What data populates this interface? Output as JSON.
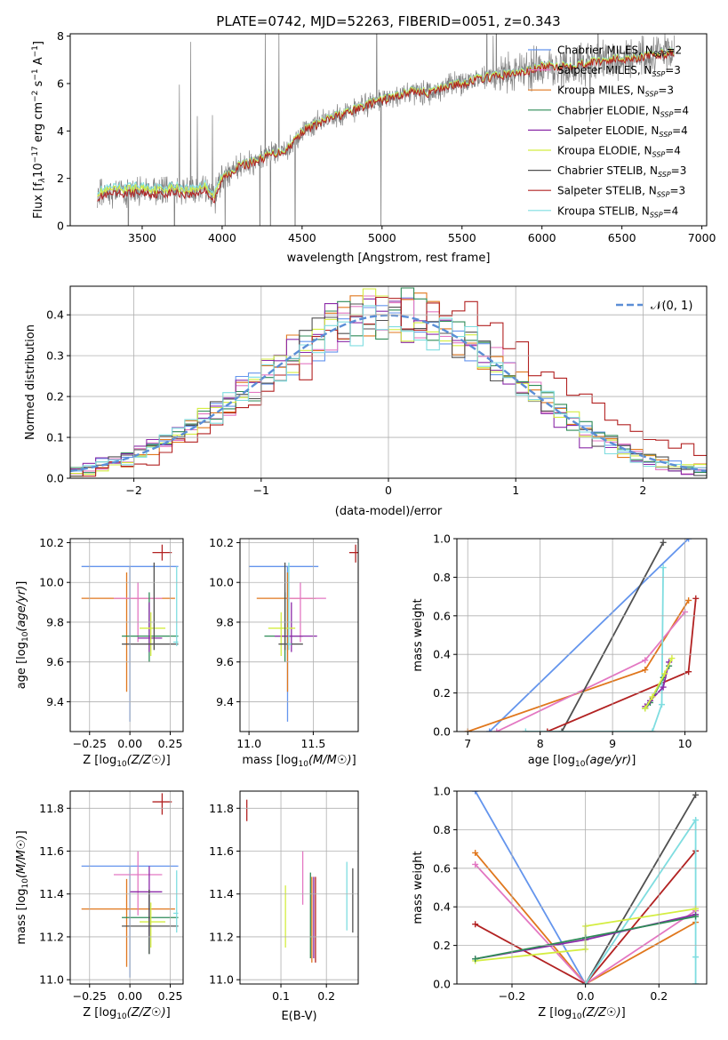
{
  "colors": {
    "Chabrier MILES": "#6495ed",
    "Salpeter MILES": "#e377c2",
    "Kroupa MILES": "#e0771d",
    "Chabrier ELODIE": "#2e8b57",
    "Salpeter ELODIE": "#8b2aa8",
    "Kroupa ELODIE": "#d4ed41",
    "Chabrier STELIB": "#505050",
    "Salpeter STELIB": "#b22222",
    "Kroupa STELIB": "#7fdde0",
    "data": "#808080",
    "normal": "#5b8ed6"
  },
  "chart_data": [
    {
      "id": "spectrum",
      "type": "line",
      "title": "PLATE=0742, MJD=52263, FIBERID=0051, z=0.343",
      "xlabel": "wavelength [Angstrom, rest frame]",
      "ylabel": "Flux [f_λ10^-17 erg cm^-2 s^-1 A^-1]",
      "xlim": [
        3050,
        7030
      ],
      "ylim": [
        0,
        8.1
      ],
      "xticks": [
        3500,
        4000,
        4500,
        5000,
        5500,
        6000,
        6500,
        7000
      ],
      "yticks": [
        0,
        2,
        4,
        6,
        8
      ],
      "grid": false,
      "legend_position": "upper-right",
      "legend": [
        {
          "model": "Chabrier MILES",
          "n": "2"
        },
        {
          "model": "Salpeter MILES",
          "n": "3"
        },
        {
          "model": "Kroupa MILES",
          "n": "3"
        },
        {
          "model": "Chabrier ELODIE",
          "n": "4"
        },
        {
          "model": "Salpeter ELODIE",
          "n": "4"
        },
        {
          "model": "Kroupa ELODIE",
          "n": "4"
        },
        {
          "model": "Chabrier STELIB",
          "n": "3"
        },
        {
          "model": "Salpeter STELIB",
          "n": "3"
        },
        {
          "model": "Kroupa STELIB",
          "n": "4"
        }
      ],
      "continuum": {
        "x": [
          3220,
          3300,
          3400,
          3500,
          3600,
          3700,
          3800,
          3900,
          3950,
          4000,
          4100,
          4200,
          4300,
          4400,
          4500,
          4600,
          4700,
          4800,
          4900,
          5000,
          5100,
          5200,
          5300,
          5400,
          5500,
          5600,
          5700,
          5800,
          5900,
          6000,
          6100,
          6200,
          6300,
          6400,
          6500,
          6600,
          6700,
          6800
        ],
        "y": [
          1.3,
          1.4,
          1.45,
          1.5,
          1.42,
          1.5,
          1.4,
          1.6,
          1.1,
          2.0,
          2.5,
          2.7,
          3.0,
          3.2,
          4.0,
          4.3,
          4.6,
          4.8,
          5.1,
          5.3,
          5.5,
          5.7,
          5.6,
          5.9,
          6.0,
          6.2,
          6.3,
          6.4,
          6.5,
          6.7,
          6.75,
          6.8,
          6.9,
          7.0,
          7.05,
          7.1,
          7.2,
          7.3
        ]
      },
      "model_offsets": {
        "Kroupa STELIB": 0.2,
        "Salpeter STELIB": -0.1,
        "Kroupa ELODIE": 0.1
      }
    },
    {
      "id": "residuals",
      "type": "histogram",
      "xlabel": "(data-model)/error",
      "ylabel": "Normed distribution",
      "xlim": [
        -2.5,
        2.5
      ],
      "ylim": [
        0,
        0.47
      ],
      "xticks": [
        -2,
        -1,
        0,
        1,
        2
      ],
      "yticks": [
        0.0,
        0.1,
        0.2,
        0.3,
        0.4
      ],
      "grid": true,
      "legend_position": "upper-right",
      "legend_label": "𝒩(0, 1)",
      "bin_width": 0.1
    },
    {
      "id": "age-vs-Z",
      "type": "errorbar",
      "xlabel": "Z [log10(Z/Z☉)]",
      "ylabel": "age  [log10(age/yr)]",
      "xlim": [
        -0.37,
        0.33
      ],
      "ylim": [
        9.25,
        10.22
      ],
      "xticks": [
        -0.25,
        0.0,
        0.25
      ],
      "xticklabels": [
        "−0.25",
        "0.00",
        "0.25"
      ],
      "yticks": [
        9.4,
        9.6,
        9.8,
        10.0,
        10.2
      ],
      "points": [
        {
          "model": "Chabrier MILES",
          "x": 0.0,
          "xlo": -0.3,
          "xhi": 0.3,
          "y": 10.08,
          "ylo": 9.3,
          "yhi": 10.08
        },
        {
          "model": "Kroupa MILES",
          "x": -0.02,
          "xlo": -0.3,
          "xhi": 0.28,
          "y": 9.92,
          "ylo": 9.45,
          "yhi": 10.05
        },
        {
          "model": "Salpeter MILES",
          "x": 0.05,
          "xlo": -0.1,
          "xhi": 0.2,
          "y": 9.92,
          "ylo": 9.7,
          "yhi": 10.0
        },
        {
          "model": "Chabrier ELODIE",
          "x": 0.12,
          "xlo": -0.05,
          "xhi": 0.3,
          "y": 9.73,
          "ylo": 9.6,
          "yhi": 9.95
        },
        {
          "model": "Salpeter ELODIE",
          "x": 0.12,
          "xlo": 0.05,
          "xhi": 0.2,
          "y": 9.72,
          "ylo": 9.65,
          "yhi": 9.9
        },
        {
          "model": "Kroupa ELODIE",
          "x": 0.13,
          "xlo": 0.06,
          "xhi": 0.22,
          "y": 9.77,
          "ylo": 9.63,
          "yhi": 9.85
        },
        {
          "model": "Chabrier STELIB",
          "x": 0.15,
          "xlo": -0.05,
          "xhi": 0.3,
          "y": 9.69,
          "ylo": 9.66,
          "yhi": 10.1
        },
        {
          "model": "Kroupa STELIB",
          "x": 0.29,
          "xlo": 0.27,
          "xhi": 0.3,
          "y": 9.7,
          "ylo": 9.68,
          "yhi": 10.08
        },
        {
          "model": "Salpeter STELIB",
          "x": 0.2,
          "xlo": 0.14,
          "xhi": 0.26,
          "y": 10.15,
          "ylo": 10.11,
          "yhi": 10.19
        }
      ]
    },
    {
      "id": "age-vs-mass",
      "type": "errorbar",
      "xlabel": "mass [log10(M/M☉)]",
      "xlim": [
        10.93,
        11.85
      ],
      "ylim": [
        9.25,
        10.22
      ],
      "xticks": [
        11.0,
        11.5
      ],
      "xticklabels": [
        "11.0",
        "11.5"
      ],
      "yticks": [
        9.4,
        9.6,
        9.8,
        10.0,
        10.2
      ],
      "points": [
        {
          "model": "Chabrier MILES",
          "x": 11.3,
          "xlo": 11.0,
          "xhi": 11.54,
          "y": 10.08,
          "ylo": 9.3,
          "yhi": 10.08
        },
        {
          "model": "Kroupa MILES",
          "x": 11.3,
          "xlo": 11.06,
          "xhi": 11.52,
          "y": 9.92,
          "ylo": 9.45,
          "yhi": 10.05
        },
        {
          "model": "Salpeter MILES",
          "x": 11.4,
          "xlo": 11.3,
          "xhi": 11.6,
          "y": 9.92,
          "ylo": 9.7,
          "yhi": 10.0
        },
        {
          "model": "Chabrier ELODIE",
          "x": 11.28,
          "xlo": 11.12,
          "xhi": 11.42,
          "y": 9.73,
          "ylo": 9.6,
          "yhi": 9.95
        },
        {
          "model": "Salpeter ELODIE",
          "x": 11.33,
          "xlo": 11.2,
          "xhi": 11.53,
          "y": 9.73,
          "ylo": 9.65,
          "yhi": 9.9
        },
        {
          "model": "Kroupa ELODIE",
          "x": 11.25,
          "xlo": 11.15,
          "xhi": 11.36,
          "y": 9.77,
          "ylo": 9.63,
          "yhi": 9.85
        },
        {
          "model": "Chabrier STELIB",
          "x": 11.28,
          "xlo": 11.23,
          "xhi": 11.42,
          "y": 9.69,
          "ylo": 9.66,
          "yhi": 10.1
        },
        {
          "model": "Kroupa STELIB",
          "x": 11.31,
          "xlo": 11.3,
          "xhi": 11.33,
          "y": 9.69,
          "ylo": 9.66,
          "yhi": 10.1
        },
        {
          "model": "Salpeter STELIB",
          "x": 11.83,
          "xlo": 11.78,
          "xhi": 11.88,
          "y": 10.15,
          "ylo": 10.1,
          "yhi": 10.19
        }
      ]
    },
    {
      "id": "massweight-vs-age",
      "type": "line",
      "xlabel": "age  [log10(age/yr)]",
      "ylabel": "mass weight",
      "xlim": [
        6.85,
        10.3
      ],
      "ylim": [
        0,
        1.0
      ],
      "xticks": [
        7,
        8,
        9,
        10
      ],
      "yticks": [
        0.0,
        0.2,
        0.4,
        0.6,
        0.8,
        1.0
      ],
      "grid": true,
      "series": [
        {
          "model": "Chabrier MILES",
          "x": [
            7.3,
            10.05
          ],
          "y": [
            0.0,
            1.0
          ]
        },
        {
          "model": "Kroupa MILES",
          "x": [
            7.0,
            9.45,
            10.05
          ],
          "y": [
            0.0,
            0.32,
            0.68
          ]
        },
        {
          "model": "Salpeter MILES",
          "x": [
            7.4,
            9.45,
            10.0
          ],
          "y": [
            0.0,
            0.37,
            0.62
          ]
        },
        {
          "model": "Chabrier STELIB",
          "x": [
            8.3,
            9.7
          ],
          "y": [
            0.0,
            0.98
          ]
        },
        {
          "model": "Salpeter STELIB",
          "x": [
            8.1,
            10.05,
            10.15
          ],
          "y": [
            0.0,
            0.31,
            0.69
          ]
        },
        {
          "model": "Kroupa STELIB",
          "x": [
            7.8,
            9.55,
            9.68,
            9.7
          ],
          "y": [
            0.0,
            0.0,
            0.14,
            0.85
          ]
        },
        {
          "model": "Chabrier ELODIE",
          "x": [
            9.45,
            9.52,
            9.7,
            9.78
          ],
          "y": [
            0.12,
            0.15,
            0.28,
            0.34
          ]
        },
        {
          "model": "Salpeter ELODIE",
          "x": [
            9.45,
            9.52,
            9.7,
            9.78
          ],
          "y": [
            0.13,
            0.16,
            0.23,
            0.36
          ]
        },
        {
          "model": "Kroupa ELODIE",
          "x": [
            9.45,
            9.55,
            9.72,
            9.82
          ],
          "y": [
            0.12,
            0.18,
            0.3,
            0.38
          ]
        }
      ]
    },
    {
      "id": "mass-vs-Z",
      "type": "errorbar",
      "xlabel": "Z [log10(Z/Z☉)]",
      "ylabel": "mass [log10(M/M☉)]",
      "xlim": [
        -0.37,
        0.33
      ],
      "ylim": [
        10.98,
        11.88
      ],
      "xticks": [
        -0.25,
        0.0,
        0.25
      ],
      "xticklabels": [
        "−0.25",
        "0.00",
        "0.25"
      ],
      "yticks": [
        11.0,
        11.2,
        11.4,
        11.6,
        11.8
      ],
      "points": [
        {
          "model": "Chabrier MILES",
          "x": 0.0,
          "xlo": -0.3,
          "xhi": 0.3,
          "y": 11.53,
          "ylo": 11.01,
          "yhi": 11.53
        },
        {
          "model": "Kroupa MILES",
          "x": -0.02,
          "xlo": -0.3,
          "xhi": 0.28,
          "y": 11.33,
          "ylo": 11.06,
          "yhi": 11.47
        },
        {
          "model": "Salpeter MILES",
          "x": 0.05,
          "xlo": -0.1,
          "xhi": 0.2,
          "y": 11.49,
          "ylo": 11.3,
          "yhi": 11.6
        },
        {
          "model": "Chabrier ELODIE",
          "x": 0.12,
          "xlo": -0.05,
          "xhi": 0.3,
          "y": 11.29,
          "ylo": 11.12,
          "yhi": 11.42
        },
        {
          "model": "Salpeter ELODIE",
          "x": 0.12,
          "xlo": 0.0,
          "xhi": 0.2,
          "y": 11.41,
          "ylo": 11.2,
          "yhi": 11.53
        },
        {
          "model": "Kroupa ELODIE",
          "x": 0.13,
          "xlo": 0.06,
          "xhi": 0.22,
          "y": 11.27,
          "ylo": 11.15,
          "yhi": 11.36
        },
        {
          "model": "Chabrier STELIB",
          "x": 0.12,
          "xlo": -0.05,
          "xhi": 0.3,
          "y": 11.25,
          "ylo": 11.12,
          "yhi": 11.42
        },
        {
          "model": "Kroupa STELIB",
          "x": 0.29,
          "xlo": 0.27,
          "xhi": 0.3,
          "y": 11.31,
          "ylo": 11.22,
          "yhi": 11.51
        },
        {
          "model": "Salpeter STELIB",
          "x": 0.2,
          "xlo": 0.14,
          "xhi": 0.26,
          "y": 11.83,
          "ylo": 11.77,
          "yhi": 11.87
        }
      ]
    },
    {
      "id": "mass-vs-ebv",
      "type": "errorbar",
      "xlabel": "E(B-V)",
      "xlim": [
        0.01,
        0.27
      ],
      "ylim": [
        10.98,
        11.88
      ],
      "xticks": [
        0.1,
        0.2
      ],
      "xticklabels": [
        "0.1",
        "0.2"
      ],
      "yticks": [
        11.0,
        11.2,
        11.4,
        11.6,
        11.8
      ],
      "points": [
        {
          "model": "Salpeter STELIB",
          "x": 0.025,
          "xlo": 0.025,
          "xhi": 0.025,
          "y": 11.79,
          "ylo": 11.74,
          "yhi": 11.84
        },
        {
          "model": "Kroupa ELODIE",
          "x": 0.11,
          "xlo": 0.11,
          "xhi": 0.11,
          "y": 11.3,
          "ylo": 11.15,
          "yhi": 11.44
        },
        {
          "model": "Salpeter MILES",
          "x": 0.148,
          "xlo": 0.148,
          "xhi": 0.148,
          "y": 11.45,
          "ylo": 11.35,
          "yhi": 11.6
        },
        {
          "model": "Chabrier ELODIE",
          "x": 0.165,
          "xlo": 0.165,
          "xhi": 0.165,
          "y": 11.3,
          "ylo": 11.1,
          "yhi": 11.5
        },
        {
          "model": "Kroupa MILES",
          "x": 0.168,
          "xlo": 0.168,
          "xhi": 0.168,
          "y": 11.28,
          "ylo": 11.08,
          "yhi": 11.48
        },
        {
          "model": "Salpeter ELODIE",
          "x": 0.172,
          "xlo": 0.172,
          "xhi": 0.172,
          "y": 11.29,
          "ylo": 11.1,
          "yhi": 11.48
        },
        {
          "model": "Salpeter STELIB",
          "x": 0.176,
          "xlo": 0.176,
          "xhi": 0.176,
          "y": 11.31,
          "ylo": 11.08,
          "yhi": 11.48
        },
        {
          "model": "Kroupa STELIB",
          "x": 0.245,
          "xlo": 0.245,
          "xhi": 0.245,
          "y": 11.39,
          "ylo": 11.23,
          "yhi": 11.55
        },
        {
          "model": "Chabrier STELIB",
          "x": 0.258,
          "xlo": 0.258,
          "xhi": 0.258,
          "y": 11.37,
          "ylo": 11.22,
          "yhi": 11.52
        }
      ]
    },
    {
      "id": "massweight-vs-Z",
      "type": "line",
      "xlabel": "Z [log10(Z/Z☉)]",
      "ylabel": "mass weight",
      "xlim": [
        -0.35,
        0.33
      ],
      "ylim": [
        0,
        1.0
      ],
      "xticks": [
        -0.2,
        0.0,
        0.2
      ],
      "xticklabels": [
        "−0.2",
        "0.0",
        "0.2"
      ],
      "yticks": [
        0.0,
        0.2,
        0.4,
        0.6,
        0.8,
        1.0
      ],
      "grid": true,
      "series": [
        {
          "model": "Chabrier MILES",
          "x": [
            -0.3,
            0.0
          ],
          "y": [
            1.0,
            0.0
          ]
        },
        {
          "model": "Kroupa MILES",
          "x": [
            -0.3,
            0.0,
            0.3
          ],
          "y": [
            0.68,
            0.0,
            0.32
          ]
        },
        {
          "model": "Salpeter MILES",
          "x": [
            -0.3,
            0.0,
            0.3
          ],
          "y": [
            0.62,
            0.0,
            0.38
          ]
        },
        {
          "model": "Salpeter STELIB",
          "x": [
            -0.3,
            0.0,
            0.3
          ],
          "y": [
            0.31,
            0.0,
            0.69
          ]
        },
        {
          "model": "Chabrier STELIB",
          "x": [
            0.0,
            0.3
          ],
          "y": [
            0.0,
            0.98
          ]
        },
        {
          "model": "Kroupa STELIB",
          "x": [
            0.0,
            0.3,
            0.3,
            0.3
          ],
          "y": [
            0.0,
            0.85,
            0.14,
            0.0
          ]
        },
        {
          "model": "Salpeter ELODIE",
          "x": [
            -0.3,
            0.0,
            0.0,
            0.3
          ],
          "y": [
            0.13,
            0.23,
            0.23,
            0.36
          ]
        },
        {
          "model": "Kroupa ELODIE",
          "x": [
            -0.3,
            0.0,
            0.0,
            0.3
          ],
          "y": [
            0.12,
            0.18,
            0.3,
            0.39
          ]
        },
        {
          "model": "Chabrier ELODIE",
          "x": [
            -0.3,
            0.0,
            0.3
          ],
          "y": [
            0.13,
            0.24,
            0.35
          ]
        }
      ]
    }
  ]
}
